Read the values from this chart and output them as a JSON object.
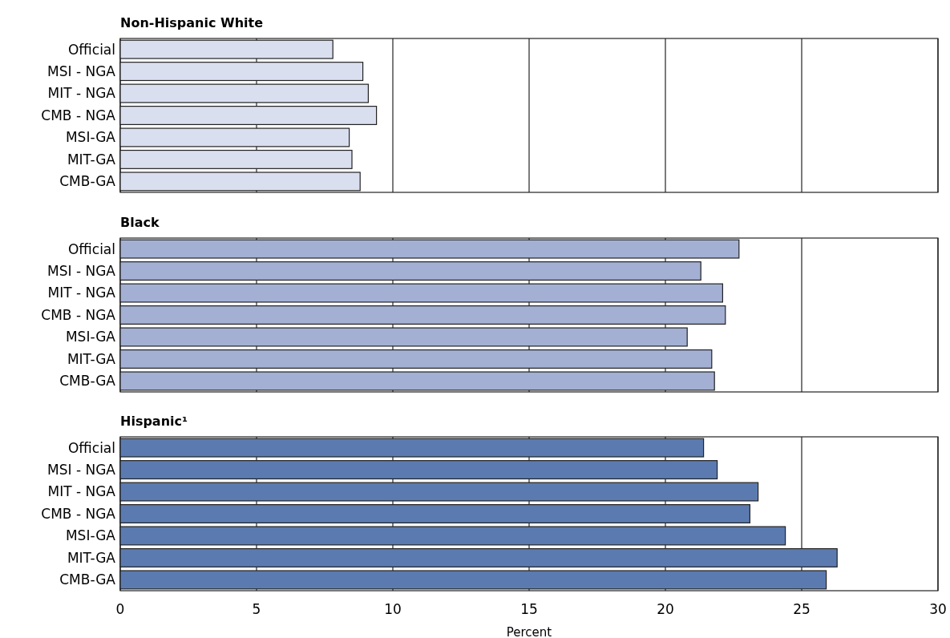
{
  "chart_data": [
    {
      "type": "bar",
      "orientation": "horizontal",
      "title": "Non-Hispanic White",
      "categories": [
        "Official",
        "MSI - NGA",
        "MIT - NGA",
        "CMB - NGA",
        "MSI-GA",
        "MIT-GA",
        "CMB-GA"
      ],
      "values": [
        7.8,
        8.9,
        9.1,
        9.4,
        8.4,
        8.5,
        8.8
      ],
      "color": "#dadff0",
      "xlim": [
        0,
        30
      ],
      "xticks": [
        0,
        5,
        10,
        15,
        20,
        25,
        30
      ],
      "grid": "x",
      "tick_labels": "y"
    },
    {
      "type": "bar",
      "orientation": "horizontal",
      "title": "Black",
      "categories": [
        "Official",
        "MSI - NGA",
        "MIT - NGA",
        "CMB - NGA",
        "MSI-GA",
        "MIT-GA",
        "CMB-GA"
      ],
      "values": [
        22.7,
        21.3,
        22.1,
        22.2,
        20.8,
        21.7,
        21.8
      ],
      "color": "#a3b0d3",
      "xlim": [
        0,
        30
      ],
      "xticks": [
        0,
        5,
        10,
        15,
        20,
        25,
        30
      ],
      "grid": "x",
      "tick_labels": "y"
    },
    {
      "type": "bar",
      "orientation": "horizontal",
      "title": "Hispanic¹",
      "categories": [
        "Official",
        "MSI - NGA",
        "MIT - NGA",
        "CMB - NGA",
        "MSI-GA",
        "MIT-GA",
        "CMB-GA"
      ],
      "values": [
        21.4,
        21.9,
        23.4,
        23.1,
        24.4,
        26.3,
        25.9
      ],
      "color": "#5b7bb0",
      "xlim": [
        0,
        30
      ],
      "xticks": [
        0,
        5,
        10,
        15,
        20,
        25,
        30
      ],
      "grid": "x",
      "xlabel": "Percent"
    }
  ]
}
